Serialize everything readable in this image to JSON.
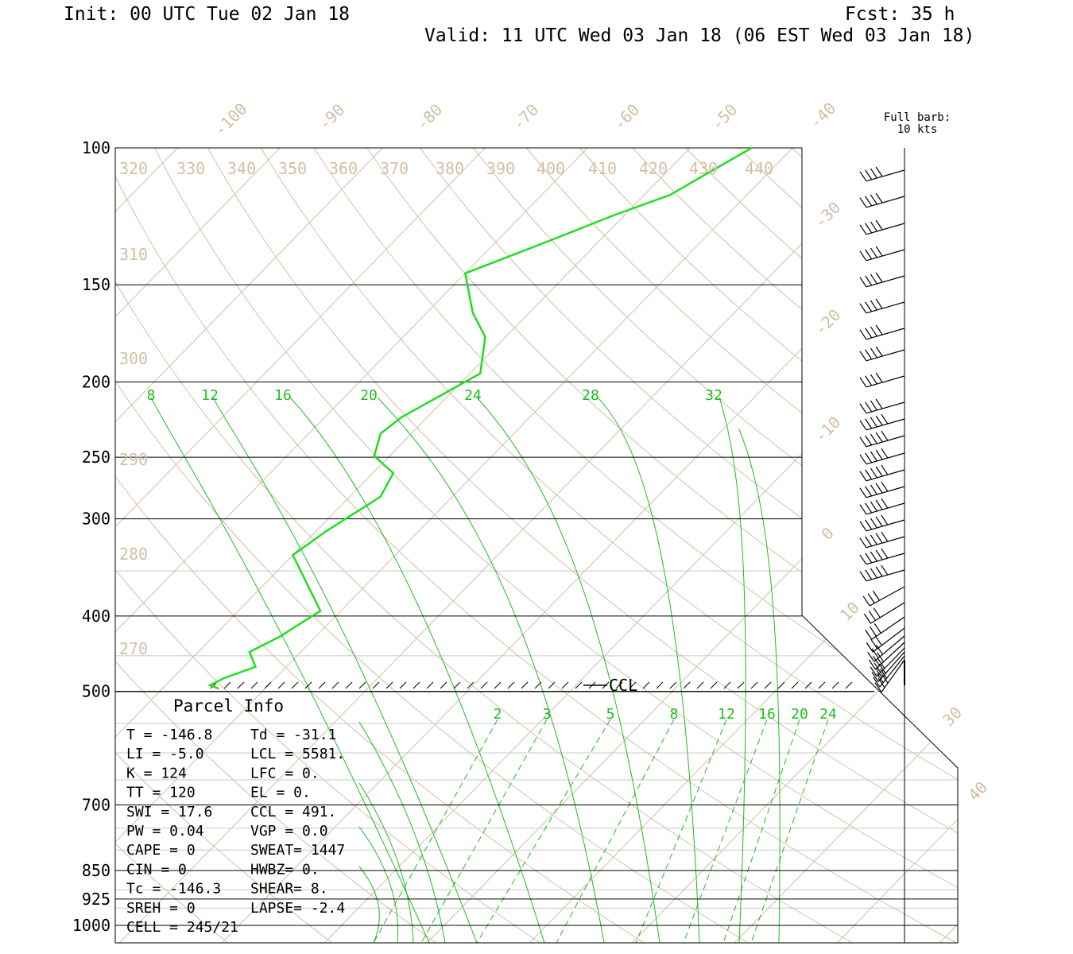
{
  "header": {
    "init": "Init: 00 UTC Tue 02 Jan 18",
    "fcst": "Fcst:   35 h",
    "valid": "Valid: 11 UTC Wed 03 Jan 18 (06 EST Wed 03 Jan 18)"
  },
  "barb_legend": {
    "line1": "Full barb:",
    "line2": "10 kts"
  },
  "chart_data": {
    "type": "line",
    "yscale": "log",
    "ylim": [
      1000,
      100
    ],
    "pressure_levels": [
      "100",
      "150",
      "200",
      "250",
      "300",
      "400",
      "500",
      "700",
      "850",
      "925",
      "1000"
    ],
    "isotherm_labels": [
      "-100",
      "-90",
      "-80",
      "-70",
      "-60",
      "-50",
      "-40",
      "-30",
      "-20",
      "-10",
      "0",
      "10",
      "30",
      "40"
    ],
    "theta_labels": [
      "320",
      "330",
      "340",
      "350",
      "360",
      "370",
      "380",
      "390",
      "400",
      "410",
      "420",
      "430",
      "440",
      "310",
      "300",
      "290",
      "280",
      "270"
    ],
    "theta_e_labels": [
      "8",
      "12",
      "16",
      "20",
      "24",
      "28",
      "32"
    ],
    "mixing_ratio_labels": [
      "2",
      "3",
      "5",
      "8",
      "12",
      "16",
      "20",
      "24"
    ],
    "ccl_label": "CCL",
    "series": [
      {
        "color": "#22dd22",
        "points": [
          {
            "p": 100,
            "t": -44
          },
          {
            "p": 115,
            "t": -47.5
          },
          {
            "p": 122,
            "t": -51
          },
          {
            "p": 132,
            "t": -55
          },
          {
            "p": 145,
            "t": -60
          },
          {
            "p": 163,
            "t": -55.5
          },
          {
            "p": 175,
            "t": -52
          },
          {
            "p": 195,
            "t": -49
          },
          {
            "p": 210,
            "t": -51
          },
          {
            "p": 222,
            "t": -52.5
          },
          {
            "p": 233,
            "t": -53
          },
          {
            "p": 249,
            "t": -51.5
          },
          {
            "p": 262,
            "t": -48
          },
          {
            "p": 281,
            "t": -47
          },
          {
            "p": 311,
            "t": -49
          },
          {
            "p": 334,
            "t": -50
          },
          {
            "p": 394,
            "t": -42
          },
          {
            "p": 425,
            "t": -43.5
          },
          {
            "p": 445,
            "t": -45
          },
          {
            "p": 465,
            "t": -43
          },
          {
            "p": 481,
            "t": -45
          },
          {
            "p": 491,
            "t": -45.7
          },
          {
            "p": 496,
            "t": -44.5
          }
        ]
      }
    ]
  },
  "parcel_info": {
    "title": "Parcel  Info",
    "rows": [
      [
        "T  =  -146.8",
        "Td = -31.1"
      ],
      [
        "LI =    -5.0",
        "LCL = 5581."
      ],
      [
        "K  =     124",
        "LFC =    0."
      ],
      [
        "TT =     120",
        "EL  =    0."
      ],
      [
        "SWI =   17.6",
        "CCL =  491."
      ],
      [
        "PW =    0.04",
        "VGP =   0.0"
      ],
      [
        "CAPE =     0",
        "SWEAT= 1447"
      ],
      [
        "CIN =      0",
        "HWBZ=    0."
      ],
      [
        "Tc =  -146.3",
        "SHEAR=   8."
      ],
      [
        "SREH =     0",
        "LAPSE= -2.4"
      ],
      [
        "CELL = 245/21",
        ""
      ]
    ]
  },
  "colors": {
    "temperature": "#22dd22",
    "isotherm": "#d2bfa4",
    "moist_adiabat": "#22bb22",
    "grid": "#000000",
    "thin_grid": "#c8c8c8"
  }
}
